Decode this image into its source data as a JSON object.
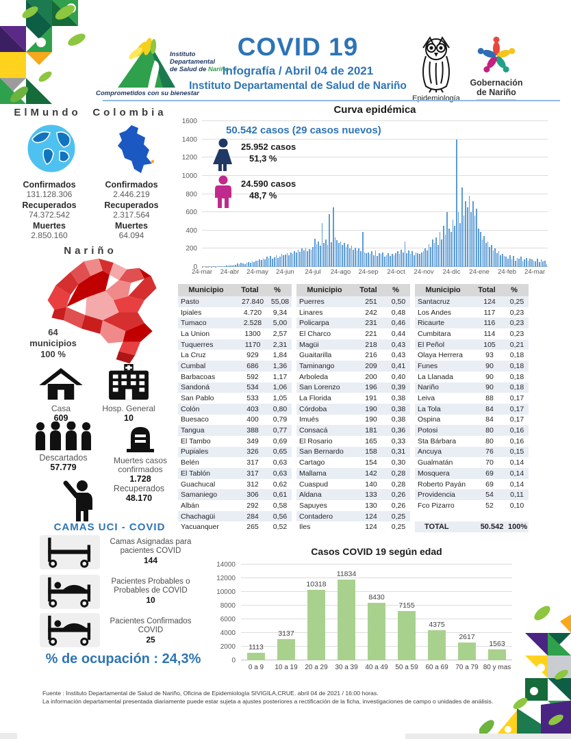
{
  "header": {
    "title": "COVID 19",
    "subtitle": "Infografía / Abril 04 de 2021",
    "subtitle2": "Instituto Departamental de Salud de Nariño",
    "idsn_line1": "Instituto",
    "idsn_line2": "Departamental",
    "idsn_line3": "de Salud de ",
    "idsn_line3b": "Nariño",
    "idsn_tagline": "Comprometidos con su bienestar",
    "epidemiologia_label": "Epidemiología",
    "gobernacion_line1": "Gobernación",
    "gobernacion_line2": "de Nariño"
  },
  "world": {
    "world_label": "ElMundo",
    "colombia_label": "Colombia",
    "world_stats": {
      "confirmados_label": "Confirmados",
      "confirmados": "131.128.306",
      "recuperados_label": "Recuperados",
      "recuperados": "74.372.542",
      "muertes_label": "Muertes",
      "muertes": "2.850.160"
    },
    "colombia_stats": {
      "confirmados_label": "Confirmados",
      "confirmados": "2.446.219",
      "recuperados_label": "Recuperados",
      "recuperados": "2.317.564",
      "muertes_label": "Muertes",
      "muertes": "64.094"
    }
  },
  "narino": {
    "heading": "Nariño",
    "muni_line1": "64",
    "muni_line2": "municipios",
    "muni_line3": "100 %",
    "casa_label": "Casa",
    "casa_value": "609",
    "hosp_label": "Hosp. General",
    "hosp_value": "10",
    "descartados_label": "Descartados",
    "descartados_value": "57.779",
    "muertes_label1": "Muertes casos",
    "muertes_label2": "confirmados",
    "muertes_value": "1.728",
    "recuperados_label": "Recuperados",
    "recuperados_value": "48.170"
  },
  "camas": {
    "heading": "CAMAS UCI - COVID",
    "items": [
      {
        "label1": "Camas Asignadas para",
        "label2": "pacientes COVID",
        "value": "144"
      },
      {
        "label1": "Pacientes Probables o",
        "label2": "Probables de COVID",
        "value": "10"
      },
      {
        "label1": "Pacientes Confirmados",
        "label2": "COVID",
        "value": "25"
      }
    ],
    "ocupacion": "% de ocupación : 24,3%"
  },
  "curve": {
    "title": "Curva epidémica",
    "total_line": "50.542 casos (29 casos nuevos)",
    "female_cases": "25.952 casos",
    "female_pct": "51,3 %",
    "male_cases": "24.590 casos",
    "male_pct": "48,7 %"
  },
  "table": {
    "headers": [
      "Municipio",
      "Total",
      "%"
    ],
    "groups": [
      [
        [
          "Pasto",
          "27.840",
          "55,08"
        ],
        [
          "Ipiales",
          "4.720",
          "9,34"
        ],
        [
          "Tumaco",
          "2.528",
          "5,00"
        ],
        [
          "La Union",
          "1300",
          "2,57"
        ],
        [
          "Tuquerres",
          "1170",
          "2,31"
        ],
        [
          "La Cruz",
          "929",
          "1,84"
        ],
        [
          "Cumbal",
          "686",
          "1,36"
        ],
        [
          "Barbacoas",
          "592",
          "1,17"
        ],
        [
          "Sandoná",
          "534",
          "1,06"
        ],
        [
          "San Pablo",
          "533",
          "1,05"
        ],
        [
          "Colón",
          "403",
          "0,80"
        ],
        [
          "Buesaco",
          "400",
          "0,79"
        ],
        [
          "Tangua",
          "388",
          "0,77"
        ],
        [
          "El Tambo",
          "349",
          "0,69"
        ],
        [
          "Pupiales",
          "326",
          "0,65"
        ],
        [
          "Belén",
          "317",
          "0,63"
        ],
        [
          "El Tablón",
          "317",
          "0,63"
        ],
        [
          "Guachucal",
          "312",
          "0,62"
        ],
        [
          "Samaniego",
          "306",
          "0,61"
        ],
        [
          "Albán",
          "292",
          "0,58"
        ],
        [
          "Chachagüi",
          "284",
          "0,56"
        ],
        [
          "Yacuanquer",
          "265",
          "0,52"
        ]
      ],
      [
        [
          "Puerres",
          "251",
          "0,50"
        ],
        [
          "Linares",
          "242",
          "0,48"
        ],
        [
          "Policarpa",
          "231",
          "0,46"
        ],
        [
          "El Charco",
          "221",
          "0,44"
        ],
        [
          "Magüi",
          "218",
          "0,43"
        ],
        [
          "Guaitarilla",
          "216",
          "0,43"
        ],
        [
          "Taminango",
          "209",
          "0,41"
        ],
        [
          "Arboleda",
          "200",
          "0,40"
        ],
        [
          "San Lorenzo",
          "196",
          "0,39"
        ],
        [
          "La Florida",
          "191",
          "0,38"
        ],
        [
          "Córdoba",
          "190",
          "0,38"
        ],
        [
          "Imués",
          "190",
          "0,38"
        ],
        [
          "Consacá",
          "181",
          "0,36"
        ],
        [
          "El Rosario",
          "165",
          "0,33"
        ],
        [
          "San Bernardo",
          "158",
          "0,31"
        ],
        [
          "Cartago",
          "154",
          "0,30"
        ],
        [
          "Mallama",
          "142",
          "0,28"
        ],
        [
          "Cuaspud",
          "140",
          "0,28"
        ],
        [
          "Aldana",
          "133",
          "0,26"
        ],
        [
          "Sapuyes",
          "130",
          "0,26"
        ],
        [
          "Contadero",
          "124",
          "0,25"
        ],
        [
          "Iles",
          "124",
          "0,25"
        ]
      ],
      [
        [
          "Santacruz",
          "124",
          "0,25"
        ],
        [
          "Los Andes",
          "117",
          "0,23"
        ],
        [
          "Ricaurte",
          "116",
          "0,23"
        ],
        [
          "Cumbitara",
          "114",
          "0,23"
        ],
        [
          "El Peñol",
          "105",
          "0,21"
        ],
        [
          "Olaya Herrera",
          "93",
          "0,18"
        ],
        [
          "Funes",
          "90",
          "0,18"
        ],
        [
          "La Llanada",
          "90",
          "0,18"
        ],
        [
          "Nariño",
          "90",
          "0,18"
        ],
        [
          "Leiva",
          "88",
          "0,17"
        ],
        [
          "La Tola",
          "84",
          "0,17"
        ],
        [
          "Ospina",
          "84",
          "0,17"
        ],
        [
          "Potosi",
          "80",
          "0,16"
        ],
        [
          "Sta Bárbara",
          "80",
          "0,16"
        ],
        [
          "Ancuya",
          "76",
          "0,15"
        ],
        [
          "Gualmatán",
          "70",
          "0,14"
        ],
        [
          "Mosquera",
          "69",
          "0,14"
        ],
        [
          "Roberto Payán",
          "69",
          "0,14"
        ],
        [
          "Providencia",
          "54",
          "0,11"
        ],
        [
          "Fco Pizarro",
          "52",
          "0,10"
        ]
      ]
    ],
    "total_row": [
      "TOTAL",
      "50.542",
      "100%"
    ]
  },
  "footer": {
    "line1": "Fuente : Instituto Departamental de Salud de Nariño, Oficina de Epidemiología SIVIGILA,CRUE.  abril 04 de 2021 / 16:00  horas.",
    "line2": "La información departamental presentada diariamente puede estar sujeta a ajustes posteriores a  rectificación de la ficha, investigaciones de campo o unidades de análisis."
  },
  "colors": {
    "accent_blue": "#2E74B5",
    "curve_bar": "#5B9BD5",
    "age_bar": "#A9D18E",
    "female_icon": "#1F3864",
    "male_icon": "#C02A8C"
  },
  "chart_data": [
    {
      "type": "bar",
      "title": "Curva epidémica",
      "subtitle": "50.542 casos (29 casos nuevos)",
      "x_tick_labels": [
        "24-mar",
        "24-abr",
        "24-may",
        "24-jun",
        "24-jul",
        "24-ago",
        "24-sep",
        "24-oct",
        "24-nov",
        "24-dic",
        "24-ene",
        "24-feb",
        "24-mar"
      ],
      "ylim": [
        0,
        1600
      ],
      "y_ticks": [
        0,
        200,
        400,
        600,
        800,
        1000,
        1200,
        1400,
        1600
      ],
      "legend": [
        {
          "name": "mujeres",
          "cases": 25952,
          "pct": 51.3
        },
        {
          "name": "hombres",
          "cases": 24590,
          "pct": 48.7
        }
      ],
      "values": [
        2,
        0,
        3,
        1,
        4,
        2,
        5,
        3,
        6,
        4,
        8,
        6,
        10,
        12,
        15,
        12,
        18,
        25,
        20,
        35,
        30,
        45,
        38,
        30,
        42,
        55,
        48,
        60,
        52,
        70,
        65,
        80,
        72,
        90,
        85,
        110,
        95,
        120,
        88,
        105,
        130,
        98,
        115,
        140,
        125,
        135,
        150,
        128,
        160,
        145,
        175,
        155,
        190,
        165,
        205,
        180,
        210,
        170,
        195,
        185,
        220,
        310,
        250,
        280,
        230,
        480,
        260,
        300,
        240,
        580,
        270,
        650,
        320,
        290,
        260,
        280,
        240,
        260,
        220,
        250,
        200,
        230,
        190,
        210,
        180,
        200,
        170,
        380,
        160,
        150,
        160,
        140,
        170,
        130,
        180,
        120,
        150,
        140,
        160,
        110,
        130,
        150,
        120,
        140,
        130,
        150,
        170,
        140,
        190,
        160,
        280,
        150,
        180,
        140,
        170,
        130,
        160,
        150,
        140,
        160,
        170,
        200,
        180,
        250,
        220,
        300,
        260,
        320,
        240,
        380,
        300,
        450,
        350,
        600,
        420,
        380,
        520,
        450,
        1400,
        600,
        480,
        870,
        560,
        720,
        650,
        780,
        600,
        720,
        560,
        640,
        420,
        380,
        300,
        340,
        260,
        280,
        220,
        240,
        180,
        200,
        150,
        170,
        130,
        140,
        120,
        110,
        90,
        130,
        80,
        120,
        70,
        100,
        90,
        110,
        60,
        80,
        100,
        70,
        90,
        80,
        70,
        60,
        90,
        50,
        80,
        60,
        70,
        29
      ]
    },
    {
      "type": "bar",
      "title": "Casos COVID 19  según edad",
      "categories": [
        "0 a 9",
        "10 a 19",
        "20 a 29",
        "30 a 39",
        "40 a 49",
        "50 a 59",
        "60 a 69",
        "70 a 79",
        "80 y mas"
      ],
      "values": [
        1113,
        3137,
        10318,
        11834,
        8430,
        7155,
        4375,
        2617,
        1563
      ],
      "ylim": [
        0,
        14000
      ],
      "y_ticks": [
        0,
        2000,
        4000,
        6000,
        8000,
        10000,
        12000,
        14000
      ]
    }
  ]
}
